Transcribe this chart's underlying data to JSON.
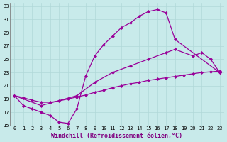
{
  "xlabel": "Windchill (Refroidissement éolien,°C)",
  "bg_color": "#c8eaea",
  "line_color": "#990099",
  "grid_color": "#b0d8d8",
  "xlim": [
    -0.5,
    23.5
  ],
  "ylim": [
    15,
    33.5
  ],
  "xticks": [
    0,
    1,
    2,
    3,
    4,
    5,
    6,
    7,
    8,
    9,
    10,
    11,
    12,
    13,
    14,
    15,
    16,
    17,
    18,
    19,
    20,
    21,
    22,
    23
  ],
  "yticks": [
    15,
    17,
    19,
    21,
    23,
    25,
    27,
    29,
    31,
    33
  ],
  "line1_x": [
    0,
    1,
    2,
    3,
    4,
    5,
    6,
    7,
    8,
    9,
    10,
    11,
    12,
    13,
    14,
    15,
    16,
    17,
    18,
    23
  ],
  "line1_y": [
    19.5,
    18.0,
    17.5,
    17.0,
    16.5,
    15.5,
    15.3,
    17.5,
    22.5,
    25.5,
    27.2,
    28.5,
    29.8,
    30.5,
    31.5,
    32.2,
    32.5,
    32.0,
    28.0,
    23.0
  ],
  "line2_x": [
    0,
    3,
    7,
    9,
    11,
    13,
    15,
    17,
    18,
    20,
    21,
    22,
    23
  ],
  "line2_y": [
    19.5,
    18.0,
    19.5,
    21.5,
    23.0,
    24.0,
    25.0,
    26.0,
    26.5,
    25.5,
    26.0,
    25.0,
    23.0
  ],
  "line3_x": [
    0,
    1,
    2,
    3,
    4,
    5,
    6,
    7,
    8,
    9,
    10,
    11,
    12,
    13,
    14,
    15,
    16,
    17,
    18,
    19,
    20,
    21,
    22,
    23
  ],
  "line3_y": [
    19.5,
    19.2,
    18.8,
    18.5,
    18.5,
    18.7,
    19.0,
    19.3,
    19.6,
    20.0,
    20.3,
    20.7,
    21.0,
    21.3,
    21.5,
    21.8,
    22.0,
    22.2,
    22.4,
    22.6,
    22.8,
    23.0,
    23.1,
    23.2
  ],
  "marker": "D",
  "markersize": 2.0,
  "linewidth": 0.9,
  "tick_fontsize": 5.0,
  "xlabel_fontsize": 6.0
}
